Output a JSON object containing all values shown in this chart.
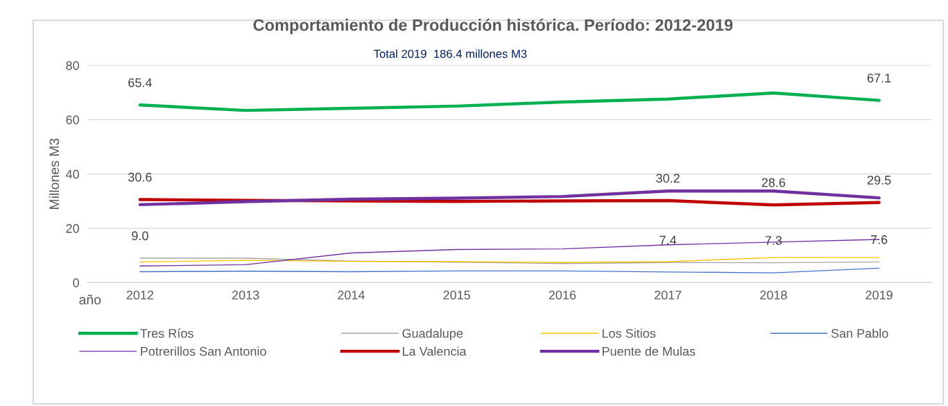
{
  "chart_data": {
    "type": "line",
    "title": "Comportamiento de Producción histórica. Período: 2012-2019",
    "subtitle": "Total 2019  186.4 millones M3",
    "xlabel": "año",
    "ylabel": "Millones M3",
    "categories": [
      "2012",
      "2013",
      "2014",
      "2015",
      "2016",
      "2017",
      "2018",
      "2019"
    ],
    "series": [
      {
        "name": "Tres Ríos",
        "color": "#00b050",
        "values": [
          65.4,
          63.4,
          64.2,
          65.0,
          66.5,
          67.6,
          69.8,
          67.1
        ],
        "value_labels": [
          "65.4",
          null,
          null,
          null,
          null,
          null,
          null,
          "67.1"
        ]
      },
      {
        "name": "Guadalupe",
        "color": "#a5a5a5",
        "values": [
          9.0,
          9.0,
          7.9,
          7.5,
          7.0,
          7.4,
          7.3,
          7.6
        ],
        "value_labels": [
          "9.0",
          null,
          null,
          null,
          null,
          "7.4",
          "7.3",
          "7.6"
        ]
      },
      {
        "name": "Los Sitios",
        "color": "#ffc000",
        "values": [
          7.6,
          8.2,
          7.8,
          7.7,
          7.4,
          7.7,
          9.2,
          9.2
        ]
      },
      {
        "name": "San Pablo",
        "color": "#4472c4",
        "values": [
          4.0,
          4.2,
          4.0,
          4.3,
          4.3,
          3.9,
          3.6,
          5.3
        ]
      },
      {
        "name": "Potrerillos San Antonio",
        "color": "#7030a0",
        "values": [
          6.1,
          6.6,
          10.9,
          12.2,
          12.4,
          13.9,
          14.9,
          15.9
        ]
      },
      {
        "name": "La Valencia",
        "color": "#c00000",
        "values": [
          30.6,
          30.3,
          30.1,
          29.9,
          30.1,
          30.2,
          28.6,
          29.5
        ],
        "value_labels": [
          "30.6",
          null,
          null,
          null,
          null,
          "30.2",
          "28.6",
          "29.5"
        ]
      },
      {
        "name": "Puente de Mulas",
        "color": "#7030a0",
        "values": [
          28.7,
          29.8,
          30.7,
          31.1,
          31.7,
          33.7,
          33.7,
          31.2
        ]
      }
    ],
    "ylim": [
      0,
      80
    ],
    "yticks": [
      0,
      20,
      40,
      60,
      80
    ],
    "grid": "y",
    "legend": "bottom",
    "marker": "none",
    "line_style": "solid"
  }
}
